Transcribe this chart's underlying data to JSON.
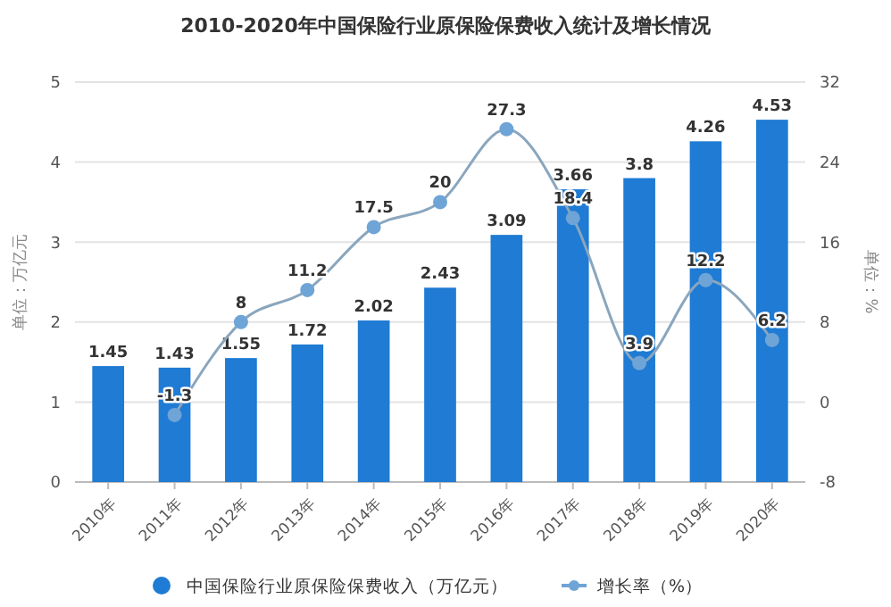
{
  "chart_data": {
    "type": "bar",
    "title": "2010-2020年中国保险行业原保险保费收入统计及增长情况",
    "categories": [
      "2010年",
      "2011年",
      "2012年",
      "2013年",
      "2014年",
      "2015年",
      "2016年",
      "2017年",
      "2018年",
      "2019年",
      "2020年"
    ],
    "series": [
      {
        "name": "中国保险行业原保险保费收入（万亿元）",
        "color": "#1f7bd3",
        "values": [
          1.45,
          1.43,
          1.55,
          1.72,
          2.02,
          2.43,
          3.09,
          3.66,
          3.8,
          4.26,
          4.53
        ]
      },
      {
        "name": "增长率（%）",
        "type": "line",
        "axis": "y2",
        "color": "#6fa4d6",
        "values": [
          null,
          -1.3,
          8.0,
          11.2,
          17.5,
          20,
          27.3,
          18.4,
          3.9,
          12.2,
          6.2
        ]
      }
    ],
    "ylabel": "单位：万亿元",
    "y2label": "单位：%",
    "ylim": [
      0,
      5
    ],
    "yticks": [
      0,
      1,
      2,
      3,
      4,
      5
    ],
    "y2lim": [
      -8,
      32
    ],
    "y2ticks": [
      -8,
      0,
      8,
      16,
      24,
      32
    ],
    "grid": "y",
    "legend": "bottom",
    "marker": "circle",
    "data_labels": true
  }
}
